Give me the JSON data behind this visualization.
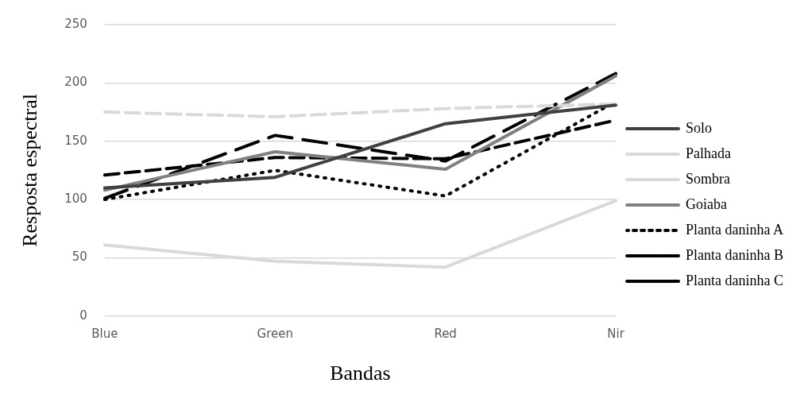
{
  "chart_data": {
    "type": "line",
    "xlabel": "Bandas",
    "ylabel": "Resposta espectral",
    "categories": [
      "Blue",
      "Green",
      "Red",
      "Nir"
    ],
    "ylim": [
      0,
      250
    ],
    "yticks": [
      0,
      50,
      100,
      150,
      200,
      250
    ],
    "grid": "y",
    "legend": "right",
    "marker": "none",
    "series": [
      {
        "name": "Solo",
        "color": "#404040",
        "line_style": "solid",
        "values": [
          110,
          119,
          165,
          181
        ]
      },
      {
        "name": "Palhada",
        "color": "#d9d9d9",
        "line_style": "dashed",
        "values": [
          175,
          171,
          178,
          182
        ]
      },
      {
        "name": "Sombra",
        "color": "#d9d9d9",
        "line_style": "solid",
        "values": [
          61,
          47,
          42,
          99
        ]
      },
      {
        "name": "Goiaba",
        "color": "#808080",
        "line_style": "solid",
        "values": [
          108,
          141,
          126,
          206
        ]
      },
      {
        "name": "Planta daninha A",
        "color": "#000000",
        "line_style": "dotted",
        "values": [
          100,
          125,
          103,
          184
        ]
      },
      {
        "name": "Planta daninha B",
        "color": "#000000",
        "line_style": "dashed",
        "values": [
          101,
          155,
          133,
          208
        ]
      },
      {
        "name": "Planta daninha C",
        "color": "#000000",
        "line_style": "dashed",
        "values": [
          121,
          136,
          135,
          168
        ]
      }
    ]
  }
}
